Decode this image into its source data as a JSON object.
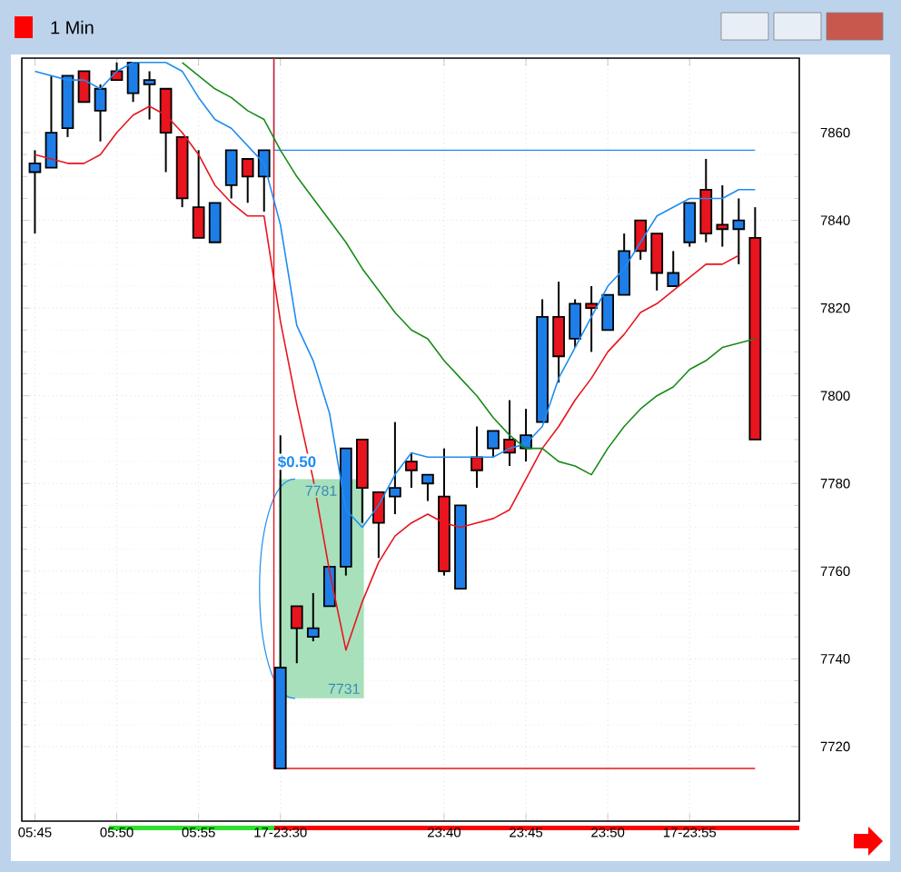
{
  "chart_data": {
    "type": "candlestick",
    "title": "1 Min",
    "categories": [
      "05:45",
      null,
      null,
      null,
      null,
      "05:50",
      null,
      null,
      null,
      null,
      "05:55",
      null,
      null,
      null,
      null,
      "17-23:30",
      null,
      null,
      null,
      null,
      null,
      null,
      null,
      null,
      null,
      "23:40",
      null,
      null,
      null,
      null,
      "23:45",
      null,
      null,
      null,
      null,
      "23:50",
      null,
      null,
      null,
      null,
      "17-23:55",
      null,
      null,
      null,
      null
    ],
    "ohlc": [
      [
        7851,
        7856,
        7837,
        7853
      ],
      [
        7852,
        7873,
        7852,
        7860
      ],
      [
        7861,
        7873,
        7859,
        7873
      ],
      [
        7874,
        7874,
        7867,
        7867
      ],
      [
        7865,
        7871,
        7858,
        7870
      ],
      [
        7874,
        7876,
        7872,
        7872
      ],
      [
        7869,
        7876,
        7867,
        7876
      ],
      [
        7871,
        7874,
        7863,
        7872
      ],
      [
        7870,
        7870,
        7851,
        7860
      ],
      [
        7859,
        7859,
        7843,
        7845
      ],
      [
        7843,
        7856,
        7836,
        7836
      ],
      [
        7835,
        7844,
        7835,
        7844
      ],
      [
        7848,
        7856,
        7845,
        7856
      ],
      [
        7854,
        7854,
        7844,
        7850
      ],
      [
        7850,
        7856,
        7842,
        7856
      ],
      [
        7715,
        7791,
        7715,
        7738
      ],
      [
        7752,
        7752,
        7739,
        7747
      ],
      [
        7745,
        7755,
        7744,
        7747
      ],
      [
        7752,
        7761,
        7752,
        7761
      ],
      [
        7761,
        7788,
        7759,
        7788
      ],
      [
        7790,
        7790,
        7771,
        7779
      ],
      [
        7778,
        7778,
        7763,
        7771
      ],
      [
        7777,
        7794,
        7773,
        7779
      ],
      [
        7785,
        7787,
        7779,
        7783
      ],
      [
        7780,
        7782,
        7776,
        7782
      ],
      [
        7777,
        7788,
        7759,
        7760
      ],
      [
        7756,
        7775,
        7756,
        7775
      ],
      [
        7786,
        7793,
        7779,
        7783
      ],
      [
        7788,
        7792,
        7786,
        7792
      ],
      [
        7790,
        7799,
        7784,
        7787
      ],
      [
        7788,
        7797,
        7785,
        7791
      ],
      [
        7794,
        7822,
        7794,
        7818
      ],
      [
        7818,
        7826,
        7803,
        7809
      ],
      [
        7813,
        7822,
        7811,
        7821
      ],
      [
        7821,
        7825,
        7810,
        7820
      ],
      [
        7815,
        7823,
        7815,
        7823
      ],
      [
        7823,
        7837,
        7823,
        7833
      ],
      [
        7840,
        7840,
        7831,
        7833
      ],
      [
        7837,
        7837,
        7824,
        7828
      ],
      [
        7825,
        7833,
        7825,
        7828
      ],
      [
        7835,
        7844,
        7834,
        7844
      ],
      [
        7847,
        7854,
        7835,
        7837
      ],
      [
        7839,
        7848,
        7834,
        7838
      ],
      [
        7838,
        7845,
        7830,
        7840
      ],
      [
        7836,
        7843,
        7790,
        7790
      ]
    ],
    "colors": [
      "#1e7ee8",
      "#1e7ee8",
      "#1e7ee8",
      "#e8141e",
      "#1e7ee8",
      "#e8141e",
      "#1e7ee8",
      "#1e7ee8",
      "#e8141e",
      "#e8141e",
      "#e8141e",
      "#1e7ee8",
      "#1e7ee8",
      "#e8141e",
      "#1e7ee8",
      "#1e7ee8",
      "#e8141e",
      "#1e7ee8",
      "#1e7ee8",
      "#1e7ee8",
      "#e8141e",
      "#e8141e",
      "#1e7ee8",
      "#e8141e",
      "#1e7ee8",
      "#e8141e",
      "#1e7ee8",
      "#e8141e",
      "#1e7ee8",
      "#e8141e",
      "#1e7ee8",
      "#1e7ee8",
      "#e8141e",
      "#1e7ee8",
      "#e8141e",
      "#1e7ee8",
      "#1e7ee8",
      "#e8141e",
      "#e8141e",
      "#1e7ee8",
      "#1e7ee8",
      "#e8141e",
      "#e8141e",
      "#1e7ee8",
      "#e8141e"
    ],
    "series": [
      {
        "type": "line",
        "color": "#1e8cf0",
        "values": [
          7874,
          7873,
          7872,
          7872,
          7870,
          7874,
          7876,
          7876,
          7876,
          7874,
          7868,
          7863,
          7861,
          7857,
          7853,
          7839,
          7816,
          7808,
          7796,
          7774,
          7770,
          7775,
          7782,
          7787,
          7786,
          7786,
          7786,
          7786,
          7786,
          7788,
          7789,
          7793,
          7804,
          7811,
          7818,
          7825,
          7829,
          7835,
          7841,
          7843,
          7845,
          7845,
          7845,
          7847,
          7847
        ]
      },
      {
        "type": "line",
        "color": "#e8141e",
        "values": [
          7855,
          7854,
          7853,
          7853,
          7855,
          7860,
          7864,
          7866,
          7864,
          7860,
          7855,
          7848,
          7844,
          7841,
          7841,
          7817,
          7798,
          7781,
          7760,
          7742,
          7753,
          7762,
          7768,
          7771,
          7773,
          7771,
          7770,
          7771,
          7772,
          7774,
          7781,
          7788,
          7793,
          7799,
          7804,
          7810,
          7814,
          7819,
          7821,
          7824,
          7827,
          7830,
          7830,
          7832,
          null
        ]
      },
      {
        "type": "line",
        "color": "#1a8a1a",
        "values": [
          null,
          null,
          null,
          null,
          null,
          null,
          null,
          null,
          null,
          7876,
          7873,
          7870,
          7868,
          7865,
          7863,
          7856,
          7850,
          7845,
          7840,
          7835,
          7829,
          7824,
          7819,
          7815,
          7813,
          7808,
          7804,
          7800,
          7795,
          7791,
          7788,
          7788,
          7785,
          7784,
          7782,
          7788,
          7793,
          7797,
          7800,
          7802,
          7806,
          7808,
          7811,
          7812,
          7813
        ]
      }
    ],
    "ylim": [
      7703,
      7877
    ],
    "yticks": [
      7720,
      7740,
      7760,
      7780,
      7800,
      7820,
      7840,
      7860
    ],
    "grid": true,
    "ref_lines": [
      {
        "axis": "y",
        "value": 7856,
        "color": "#1e8cf0"
      },
      {
        "axis": "y",
        "value": 7715,
        "color": "#e8141e"
      }
    ],
    "bands": [
      {
        "axis": "y",
        "from": 7731,
        "to": 7781,
        "color": "#a8e0bc"
      }
    ],
    "annotations": [
      {
        "text": "$0.50",
        "y": 7781
      },
      {
        "text": "7781",
        "y": 7781
      },
      {
        "text": "7731",
        "y": 7731
      }
    ]
  }
}
